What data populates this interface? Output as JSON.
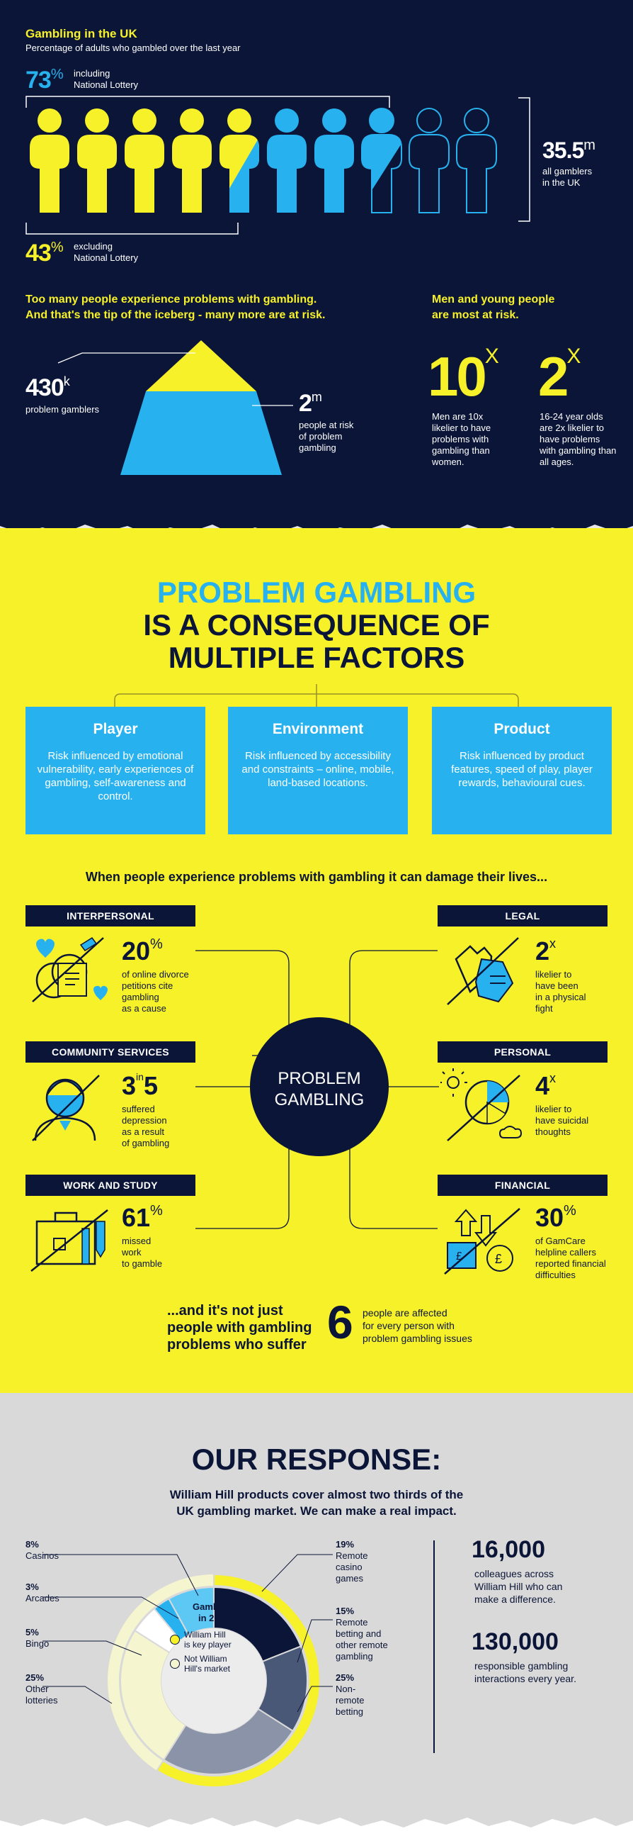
{
  "uk": {
    "title": "Gambling in the UK",
    "subtitle": "Percentage of adults who gambled over the last year",
    "pct_incl": "73",
    "pct_sign": "%",
    "incl_label_1": "including",
    "incl_label_2": "National Lottery",
    "pct_excl": "43",
    "excl_label_1": "excluding",
    "excl_label_2": "National Lottery",
    "total": "35.5",
    "total_unit": "m",
    "total_label_1": "all gamblers",
    "total_label_2": "in the UK"
  },
  "iceberg": {
    "heading_1": "Too many people experience problems with gambling.",
    "heading_2": "And that's the tip of the iceberg - many more are at risk.",
    "problem_num": "430",
    "problem_unit": "k",
    "problem_label": "problem gamblers",
    "risk_num": "2",
    "risk_unit": "m",
    "risk_label_1": "people at risk",
    "risk_label_2": "of problem",
    "risk_label_3": "gambling"
  },
  "risk": {
    "heading_1": "Men and young people",
    "heading_2": "are most at risk.",
    "men_num": "10",
    "men_x": "X",
    "men_label": "Men are 10x likelier to have problems with gambling than women.",
    "young_num": "2",
    "young_x": "X",
    "young_label": "16-24 year olds are 2x likelier to have problems with gambling than all ages."
  },
  "factors": {
    "title_1": "PROBLEM GAMBLING",
    "title_2": "IS A CONSEQUENCE OF",
    "title_3": "MULTIPLE FACTORS",
    "player_title": "Player",
    "player_text": "Risk influenced by emotional vulnerability, early experiences of gambling, self-awareness and control.",
    "env_title": "Environment",
    "env_text": "Risk influenced by accessibility and constraints – online, mobile, land-based locations.",
    "product_title": "Product",
    "product_text": "Risk influenced by product features, speed of play, player rewards, behavioural cues."
  },
  "damage": {
    "heading": "When people experience problems with gambling it can damage their lives...",
    "center_1": "PROBLEM",
    "center_2": "GAMBLING",
    "interpersonal": {
      "head": "INTERPERSONAL",
      "num": "20",
      "sup": "%",
      "l1": "of online divorce",
      "l2": "petitions cite",
      "l3": "gambling",
      "l4": "as a cause"
    },
    "community": {
      "head": "COMMUNITY SERVICES",
      "num_a": "3",
      "in": "in",
      "num_b": "5",
      "l1": "suffered",
      "l2": "depression",
      "l3": "as a result",
      "l4": "of gambling"
    },
    "work": {
      "head": "WORK AND STUDY",
      "num": "61",
      "sup": "%",
      "l1": "missed",
      "l2": "work",
      "l3": "to gamble"
    },
    "legal": {
      "head": "LEGAL",
      "num": "2",
      "sup": "x",
      "l1": "likelier to",
      "l2": "have been",
      "l3": "in a physical",
      "l4": "fight"
    },
    "personal": {
      "head": "PERSONAL",
      "num": "4",
      "sup": "x",
      "l1": "likelier to",
      "l2": "have suicidal",
      "l3": "thoughts"
    },
    "financial": {
      "head": "FINANCIAL",
      "num": "30",
      "sup": "%",
      "l1": "of GamCare",
      "l2": "helpline callers",
      "l3": "reported financial",
      "l4": "difficulties"
    },
    "footer_1": "...and it's not just",
    "footer_2": "people with gambling",
    "footer_3": "problems who suffer",
    "footer_num": "6",
    "footer_r1": "people are affected",
    "footer_r2": "for every person with",
    "footer_r3": "problem gambling issues"
  },
  "response": {
    "title": "OUR RESPONSE:",
    "sub_1": "William Hill products cover almost two thirds of the",
    "sub_2": "UK gambling market. We can make a real impact.",
    "donut_title_1": "Gambling",
    "donut_title_2": "in 2017",
    "legend_key_1": "William Hill",
    "legend_key_2": "is key player",
    "legend_not_1": "Not William",
    "legend_not_2": "Hill's market",
    "labels": [
      {
        "pct": "8%",
        "name": "Casinos"
      },
      {
        "pct": "3%",
        "name": "Arcades"
      },
      {
        "pct": "5%",
        "name": "Bingo"
      },
      {
        "pct": "25%",
        "name": "Other",
        "name2": "lotteries"
      },
      {
        "pct": "19%",
        "name": "Remote",
        "name2": "casino",
        "name3": "games"
      },
      {
        "pct": "15%",
        "name": "Remote",
        "name2": "betting and",
        "name3": "other remote",
        "name4": "gambling"
      },
      {
        "pct": "25%",
        "name": "Non-",
        "name2": "remote",
        "name3": "betting"
      }
    ],
    "colleagues_num": "16,000",
    "colleagues_1": "colleagues across",
    "colleagues_2": "William Hill who can",
    "colleagues_3": "make a difference.",
    "interactions_num": "130,000",
    "interactions_1": "responsible gambling",
    "interactions_2": "interactions every year."
  },
  "chart_data": {
    "type": "pie",
    "title": "Gambling in 2017",
    "categories": [
      "Remote casino games",
      "Remote betting and other remote gambling",
      "Non-remote betting",
      "Other lotteries",
      "Bingo",
      "Arcades",
      "Casinos"
    ],
    "values": [
      19,
      15,
      25,
      25,
      5,
      3,
      8
    ],
    "series": [
      {
        "name": "William Hill is key player",
        "values": [
          19,
          15,
          25,
          0,
          0,
          0,
          0
        ]
      },
      {
        "name": "Not William Hill's market",
        "values": [
          0,
          0,
          0,
          25,
          5,
          3,
          8
        ]
      }
    ],
    "colors": [
      "#0b1537",
      "#4a5878",
      "#8a93a8",
      "#f5f5cf",
      "#ffffff",
      "#27b2ef",
      "#5ec8f5"
    ]
  },
  "colors": {
    "navy": "#0b1537",
    "yellow": "#f7f12a",
    "blue": "#27b2ef",
    "grey": "#d9d9d9"
  }
}
